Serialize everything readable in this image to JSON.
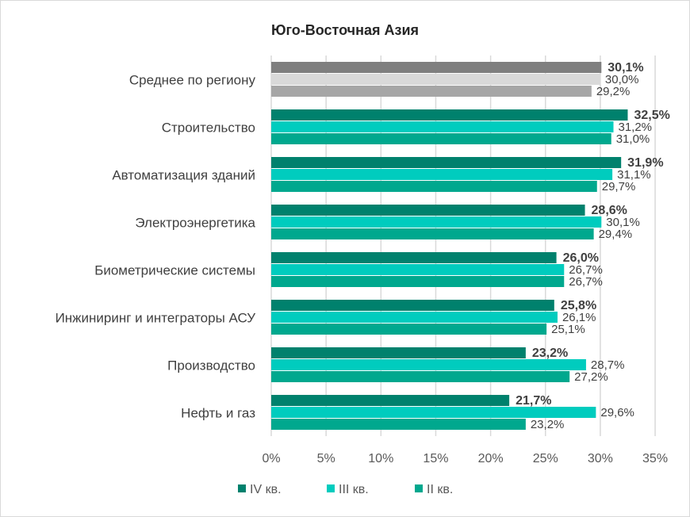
{
  "chart_data": {
    "type": "bar",
    "orientation": "horizontal",
    "title": "Юго-Восточная Азия",
    "categories": [
      "Среднее по региону",
      "Строительство",
      "Автоматизация зданий",
      "Электроэнергетика",
      "Биометрические системы",
      "Инжиниринг и интеграторы АСУ",
      "Производство",
      "Нефть и газ"
    ],
    "series": [
      {
        "name": "IV кв.",
        "color": "#00816D",
        "values": [
          30.1,
          32.5,
          31.9,
          28.6,
          26.0,
          25.8,
          23.2,
          21.7
        ],
        "labels": [
          "30,1%",
          "32,5%",
          "31,9%",
          "28,6%",
          "26,0%",
          "25,8%",
          "23,2%",
          "21,7%"
        ]
      },
      {
        "name": "III кв.",
        "color": "#00CCBE",
        "values": [
          30.0,
          31.2,
          31.1,
          30.1,
          26.7,
          26.1,
          28.7,
          29.6
        ],
        "labels": [
          "30,0%",
          "31,2%",
          "31,1%",
          "30,1%",
          "26,7%",
          "26,1%",
          "28,7%",
          "29,6%"
        ]
      },
      {
        "name": "II кв.",
        "color": "#00A88E",
        "values": [
          29.2,
          31.0,
          29.7,
          29.4,
          26.7,
          25.1,
          27.2,
          23.2
        ],
        "labels": [
          "29,2%",
          "31,0%",
          "29,7%",
          "29,4%",
          "26,7%",
          "25,1%",
          "27,2%",
          "23,2%"
        ]
      }
    ],
    "average_colors": [
      "#7F7F7F",
      "#D9D9D9",
      "#A6A6A6"
    ],
    "xlim": [
      0,
      35
    ],
    "xticks": [
      "0%",
      "5%",
      "10%",
      "15%",
      "20%",
      "25%",
      "30%",
      "35%"
    ],
    "grid": true,
    "legend": "bottom"
  }
}
